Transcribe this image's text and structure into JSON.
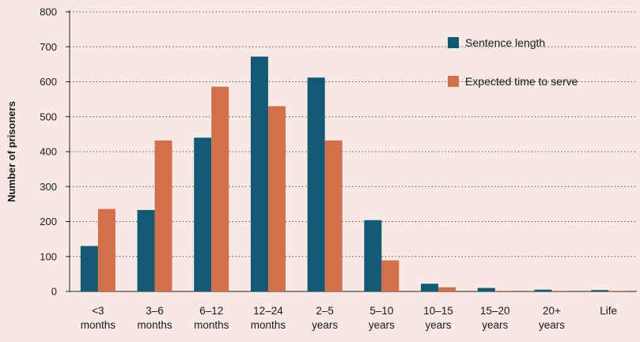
{
  "chart_data": {
    "type": "bar",
    "title": "",
    "xlabel": "",
    "ylabel": "Number of prisoners",
    "ylim": [
      0,
      800
    ],
    "yticks": [
      0,
      100,
      200,
      300,
      400,
      500,
      600,
      700,
      800
    ],
    "grid": "horizontal dotted",
    "legend_position": "top-right",
    "categories": [
      [
        "<3",
        "months"
      ],
      [
        "3–6",
        "months"
      ],
      [
        "6–12",
        "months"
      ],
      [
        "12–24",
        "months"
      ],
      [
        "2–5",
        "years"
      ],
      [
        "5–10",
        "years"
      ],
      [
        "10–15",
        "years"
      ],
      [
        "15–20",
        "years"
      ],
      [
        "20+",
        "years"
      ],
      [
        "Life"
      ]
    ],
    "series": [
      {
        "name": "Sentence length",
        "color": "#0f5a72",
        "values": [
          130,
          233,
          440,
          672,
          612,
          204,
          22,
          10,
          5,
          4
        ]
      },
      {
        "name": "Expected time to serve",
        "color": "#d2704a",
        "values": [
          236,
          432,
          586,
          530,
          432,
          89,
          12,
          2,
          2,
          2
        ]
      }
    ]
  }
}
